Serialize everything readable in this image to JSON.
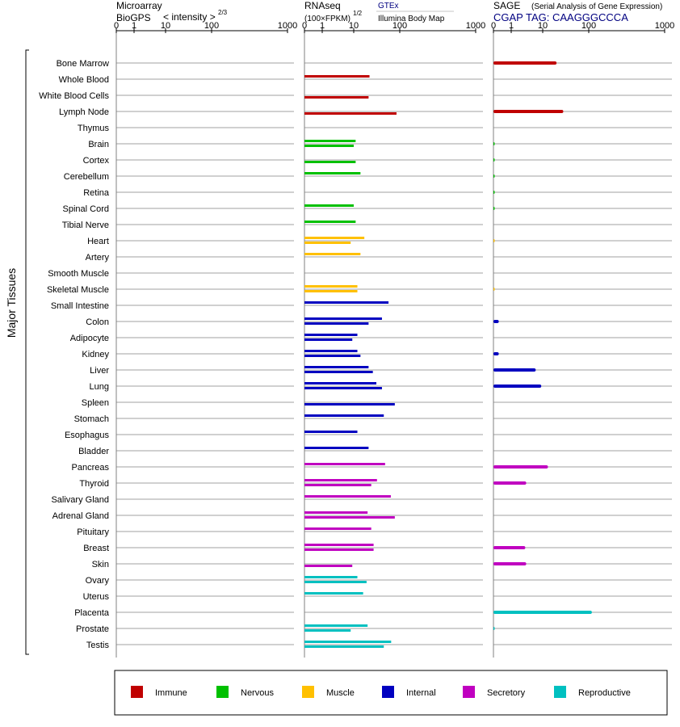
{
  "headers": {
    "microarray": {
      "line1": "Microarray",
      "line2": "BioGPS",
      "subtitle": "< intensity >",
      "exponent": "2/3"
    },
    "rnaseq": {
      "line1": "RNAseq",
      "line2": "(100×FPKM)",
      "exponent": "1/2",
      "source1": "GTEx",
      "source2": "Illumina Body Map"
    },
    "sage": {
      "line1": "SAGE",
      "line1_detail": "(Serial Analysis of Gene Expression)",
      "line2": "CGAP TAG: CAAGGGCCCA"
    }
  },
  "y_axis_label": "Major Tissues",
  "colors": {
    "Immune": "#c00000",
    "Nervous": "#00c000",
    "Muscle": "#ffc000",
    "Internal": "#0000c0",
    "Secretory": "#c000c0",
    "Reproductive": "#00c0c0",
    "grid": "#808080",
    "sage_blue": "#000080"
  },
  "chart_data": {
    "type": "bar",
    "orientation": "horizontal",
    "scale": "log-like (0, 1, 10, 100, 1000)",
    "panels": [
      {
        "name": "Microarray BioGPS",
        "tick_labels": [
          "0",
          "1",
          "10",
          "100",
          "1000"
        ],
        "tick_values": [
          0,
          1,
          10,
          100,
          1000
        ]
      },
      {
        "name": "RNAseq",
        "tick_labels": [
          "0",
          "1",
          "10",
          "100",
          "1000"
        ],
        "tick_values": [
          0,
          1,
          10,
          100,
          1000
        ]
      },
      {
        "name": "SAGE",
        "tick_labels": [
          "0",
          "1",
          "10",
          "100",
          "1000"
        ],
        "tick_values": [
          0,
          1,
          10,
          100,
          1000
        ]
      }
    ],
    "legend": [
      "Immune",
      "Nervous",
      "Muscle",
      "Internal",
      "Secretory",
      "Reproductive"
    ],
    "tissues": [
      {
        "name": "Bone Marrow",
        "group": "Immune",
        "rnaseq_gtex": null,
        "rnaseq_ibm": null,
        "sage": 20
      },
      {
        "name": "Whole Blood",
        "group": "Immune",
        "rnaseq_gtex": 22,
        "rnaseq_ibm": null,
        "sage": null
      },
      {
        "name": "White Blood Cells",
        "group": "Immune",
        "rnaseq_gtex": null,
        "rnaseq_ibm": 21,
        "sage": null
      },
      {
        "name": "Lymph Node",
        "group": "Immune",
        "rnaseq_gtex": null,
        "rnaseq_ibm": 85,
        "sage": 28
      },
      {
        "name": "Thymus",
        "group": "Immune",
        "rnaseq_gtex": null,
        "rnaseq_ibm": null,
        "sage": null
      },
      {
        "name": "Brain",
        "group": "Nervous",
        "rnaseq_gtex": 11,
        "rnaseq_ibm": 10,
        "sage": 0.05
      },
      {
        "name": "Cortex",
        "group": "Nervous",
        "rnaseq_gtex": null,
        "rnaseq_ibm": 11,
        "sage": 0.05
      },
      {
        "name": "Cerebellum",
        "group": "Nervous",
        "rnaseq_gtex": 14,
        "rnaseq_ibm": null,
        "sage": 0.05
      },
      {
        "name": "Retina",
        "group": "Nervous",
        "rnaseq_gtex": null,
        "rnaseq_ibm": null,
        "sage": 0.05
      },
      {
        "name": "Spinal Cord",
        "group": "Nervous",
        "rnaseq_gtex": 10,
        "rnaseq_ibm": null,
        "sage": 0.05
      },
      {
        "name": "Tibial Nerve",
        "group": "Nervous",
        "rnaseq_gtex": 11,
        "rnaseq_ibm": null,
        "sage": null
      },
      {
        "name": "Heart",
        "group": "Muscle",
        "rnaseq_gtex": 17,
        "rnaseq_ibm": 8,
        "sage": 0.05
      },
      {
        "name": "Artery",
        "group": "Muscle",
        "rnaseq_gtex": 14,
        "rnaseq_ibm": null,
        "sage": null
      },
      {
        "name": "Smooth Muscle",
        "group": "Muscle",
        "rnaseq_gtex": null,
        "rnaseq_ibm": null,
        "sage": null
      },
      {
        "name": "Skeletal Muscle",
        "group": "Muscle",
        "rnaseq_gtex": 12,
        "rnaseq_ibm": 12,
        "sage": 0.05
      },
      {
        "name": "Small Intestine",
        "group": "Internal",
        "rnaseq_gtex": 57,
        "rnaseq_ibm": null,
        "sage": null
      },
      {
        "name": "Colon",
        "group": "Internal",
        "rnaseq_gtex": 41,
        "rnaseq_ibm": 21,
        "sage": 0.3
      },
      {
        "name": "Adipocyte",
        "group": "Internal",
        "rnaseq_gtex": 12,
        "rnaseq_ibm": 9,
        "sage": null
      },
      {
        "name": "Kidney",
        "group": "Internal",
        "rnaseq_gtex": 12,
        "rnaseq_ibm": 14,
        "sage": 0.3
      },
      {
        "name": "Liver",
        "group": "Internal",
        "rnaseq_gtex": 21,
        "rnaseq_ibm": 26,
        "sage": 6
      },
      {
        "name": "Lung",
        "group": "Internal",
        "rnaseq_gtex": 31,
        "rnaseq_ibm": 41,
        "sage": 9
      },
      {
        "name": "Spleen",
        "group": "Internal",
        "rnaseq_gtex": null,
        "rnaseq_ibm": 78,
        "sage": null
      },
      {
        "name": "Stomach",
        "group": "Internal",
        "rnaseq_gtex": 45,
        "rnaseq_ibm": null,
        "sage": null
      },
      {
        "name": "Esophagus",
        "group": "Internal",
        "rnaseq_gtex": 12,
        "rnaseq_ibm": null,
        "sage": null
      },
      {
        "name": "Bladder",
        "group": "Internal",
        "rnaseq_gtex": 21,
        "rnaseq_ibm": null,
        "sage": null
      },
      {
        "name": "Pancreas",
        "group": "Secretory",
        "rnaseq_gtex": 48,
        "rnaseq_ibm": null,
        "sage": 13
      },
      {
        "name": "Thyroid",
        "group": "Secretory",
        "rnaseq_gtex": 32,
        "rnaseq_ibm": 24,
        "sage": 3
      },
      {
        "name": "Salivary Gland",
        "group": "Secretory",
        "rnaseq_gtex": 64,
        "rnaseq_ibm": null,
        "sage": null
      },
      {
        "name": "Adrenal Gland",
        "group": "Secretory",
        "rnaseq_gtex": 20,
        "rnaseq_ibm": 78,
        "sage": null
      },
      {
        "name": "Pituitary",
        "group": "Secretory",
        "rnaseq_gtex": 24,
        "rnaseq_ibm": null,
        "sage": null
      },
      {
        "name": "Breast",
        "group": "Secretory",
        "rnaseq_gtex": 27,
        "rnaseq_ibm": 27,
        "sage": 2.8
      },
      {
        "name": "Skin",
        "group": "Secretory",
        "rnaseq_gtex": null,
        "rnaseq_ibm": 9,
        "sage": 3
      },
      {
        "name": "Ovary",
        "group": "Reproductive",
        "rnaseq_gtex": 12,
        "rnaseq_ibm": 19,
        "sage": null
      },
      {
        "name": "Uterus",
        "group": "Reproductive",
        "rnaseq_gtex": 16,
        "rnaseq_ibm": null,
        "sage": null
      },
      {
        "name": "Placenta",
        "group": "Reproductive",
        "rnaseq_gtex": null,
        "rnaseq_ibm": null,
        "sage": 110
      },
      {
        "name": "Prostate",
        "group": "Reproductive",
        "rnaseq_gtex": 20,
        "rnaseq_ibm": 8,
        "sage": 0.05
      },
      {
        "name": "Testis",
        "group": "Reproductive",
        "rnaseq_gtex": 65,
        "rnaseq_ibm": 45,
        "sage": null
      }
    ]
  }
}
